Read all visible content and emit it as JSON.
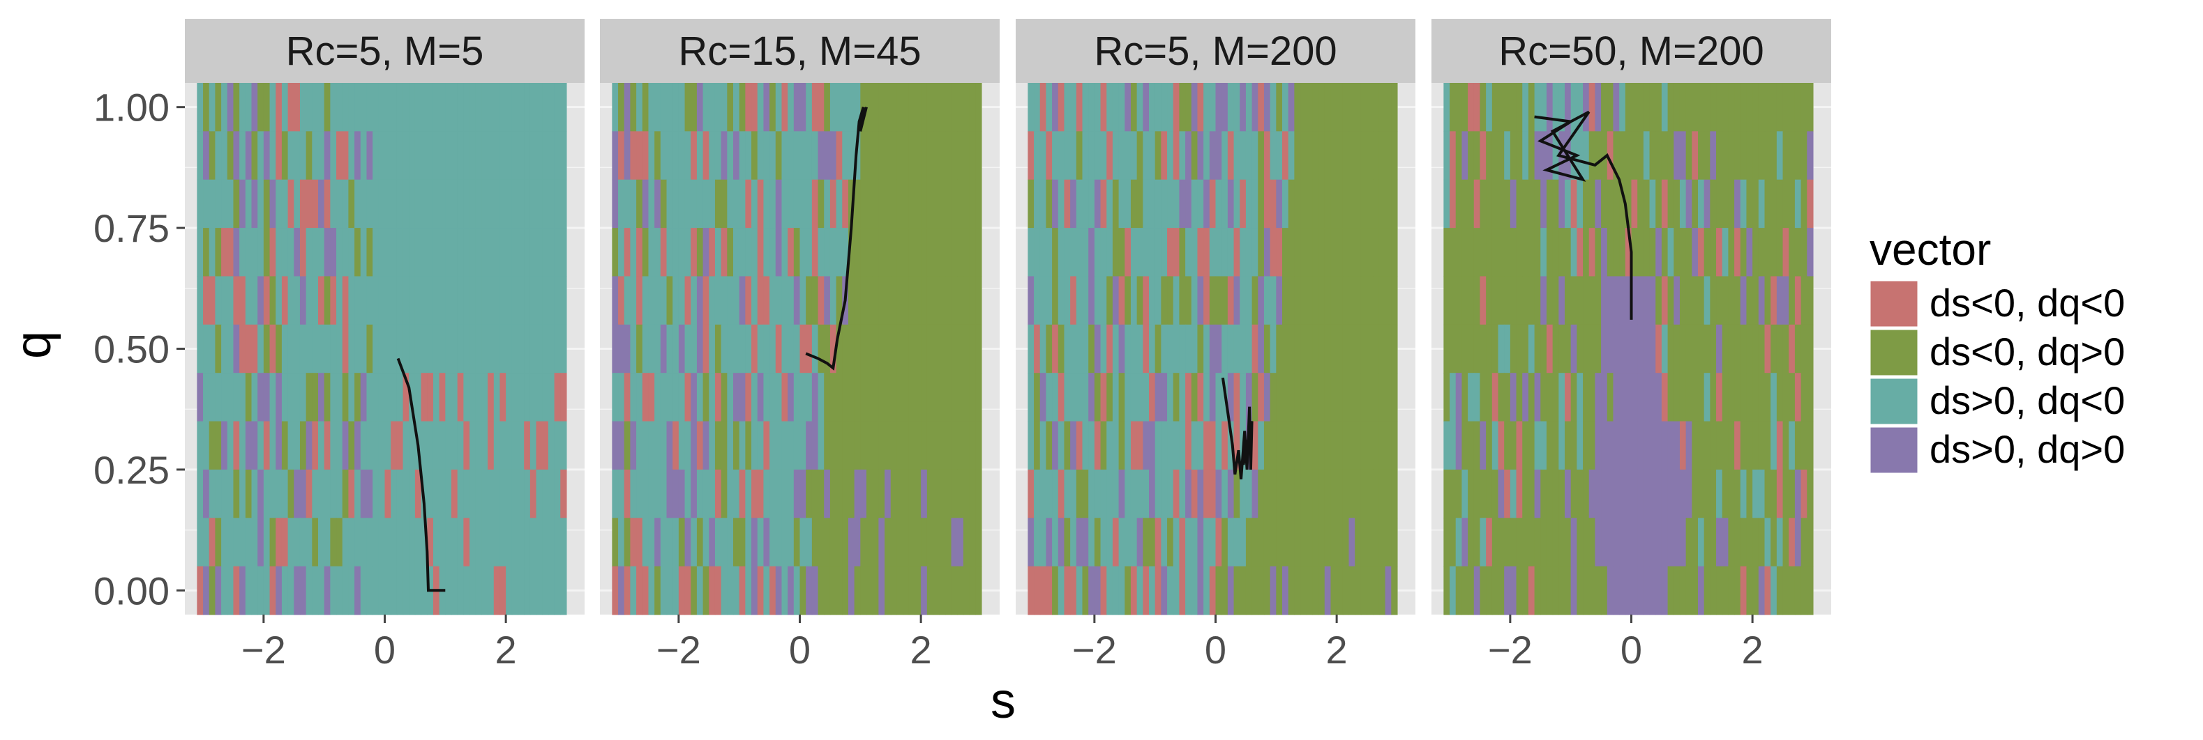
{
  "chart_data": {
    "type": "heatmap",
    "xlabel": "s",
    "ylabel": "q",
    "xlim": [
      -3.3,
      3.3
    ],
    "ylim": [
      -0.05,
      1.05
    ],
    "x_ticks": [
      -2,
      0,
      2
    ],
    "x_tick_labels": [
      "−2",
      "0",
      "2"
    ],
    "y_ticks": [
      0,
      0.25,
      0.5,
      0.75,
      1
    ],
    "y_tick_labels": [
      "0.00",
      "0.25",
      "0.50",
      "0.75",
      "1.00"
    ],
    "grid": true,
    "legend": {
      "title": "vector",
      "position": "right",
      "entries": [
        {
          "label": "ds<0, dq<0",
          "color": "#C77371"
        },
        {
          "label": "ds<0, dq>0",
          "color": "#7E9B45"
        },
        {
          "label": "ds>0, dq<0",
          "color": "#67ADA5"
        },
        {
          "label": "ds>0, dq>0",
          "color": "#8878AD"
        }
      ]
    },
    "trajectory_color": "#111111",
    "panel_background": "#E5E5E5",
    "strip_background": "#CBCBCB",
    "panels": [
      {
        "title": "Rc=5, M=5",
        "cells": {
          "x_start": -3.05,
          "x_step": 0.1,
          "n_x": 61,
          "q_rows": [
            1.0,
            0.9,
            0.8,
            0.7,
            0.6,
            0.5,
            0.4,
            0.3,
            0.2,
            0.1,
            0.0
          ],
          "base": 2,
          "boundary": -0.2,
          "right_base": 2,
          "noise_codes": [
            0,
            1,
            2,
            3
          ],
          "right_noise_codes": [
            0
          ],
          "right_noise_rows": [
            0.0,
            0.1,
            0.2,
            0.3,
            0.4
          ]
        },
        "trajectory": [
          [
            0.22,
            0.48
          ],
          [
            0.4,
            0.42
          ],
          [
            0.55,
            0.3
          ],
          [
            0.65,
            0.18
          ],
          [
            0.7,
            0.08
          ],
          [
            0.72,
            0.0
          ],
          [
            1.0,
            0.0
          ]
        ]
      },
      {
        "title": "Rc=15, M=45",
        "cells": {
          "x_start": -3.05,
          "x_step": 0.1,
          "n_x": 61,
          "q_rows": [
            1.0,
            0.9,
            0.8,
            0.7,
            0.6,
            0.5,
            0.4,
            0.3,
            0.2,
            0.1,
            0.0
          ],
          "base": 2,
          "boundary_by_row": [
            1.1,
            1.0,
            0.9,
            0.85,
            0.8,
            0.7,
            0.5,
            0.45,
            0.35,
            0.2,
            0.0
          ],
          "right_base": 1,
          "noise_codes": [
            0,
            1,
            2,
            3
          ],
          "right_noise_codes": [
            3
          ],
          "right_noise_rows": [
            0.0,
            0.1,
            0.2
          ]
        },
        "trajectory": [
          [
            0.1,
            0.49
          ],
          [
            0.3,
            0.48
          ],
          [
            0.45,
            0.47
          ],
          [
            0.55,
            0.46
          ],
          [
            0.62,
            0.52
          ],
          [
            0.75,
            0.6
          ],
          [
            0.85,
            0.75
          ],
          [
            0.93,
            0.9
          ],
          [
            0.98,
            0.97
          ],
          [
            1.05,
            1.0
          ],
          [
            1.0,
            0.95
          ],
          [
            1.1,
            1.0
          ]
        ]
      },
      {
        "title": "Rc=5, M=200",
        "cells": {
          "x_start": -3.05,
          "x_step": 0.1,
          "n_x": 61,
          "q_rows": [
            1.0,
            0.9,
            0.8,
            0.7,
            0.6,
            0.5,
            0.4,
            0.3,
            0.2,
            0.1,
            0.0
          ],
          "base": 2,
          "boundary_by_row": [
            1.3,
            1.3,
            1.2,
            1.1,
            1.1,
            1.0,
            0.9,
            0.8,
            0.7,
            0.5,
            0.1
          ],
          "right_base": 1,
          "noise_codes": [
            0,
            1,
            2,
            3
          ],
          "right_noise_codes": [
            3
          ],
          "right_noise_rows": [
            0.0,
            0.1
          ]
        },
        "trajectory": [
          [
            0.12,
            0.44
          ],
          [
            0.2,
            0.37
          ],
          [
            0.28,
            0.3
          ],
          [
            0.32,
            0.24
          ],
          [
            0.38,
            0.29
          ],
          [
            0.42,
            0.23
          ],
          [
            0.48,
            0.33
          ],
          [
            0.52,
            0.25
          ],
          [
            0.56,
            0.38
          ],
          [
            0.58,
            0.25
          ],
          [
            0.6,
            0.35
          ],
          [
            0.52,
            0.3
          ],
          [
            0.46,
            0.26
          ]
        ]
      },
      {
        "title": "Rc=50, M=200",
        "cells": {
          "x_start": -3.05,
          "x_step": 0.1,
          "n_x": 61,
          "q_rows": [
            1.0,
            0.9,
            0.8,
            0.7,
            0.6,
            0.5,
            0.4,
            0.3,
            0.2,
            0.1,
            0.0
          ],
          "base": 1,
          "noise_codes": [
            1,
            3,
            2,
            0
          ],
          "purple_core": [
            [
              -0.4,
              0.6,
              0.0
            ],
            [
              -0.6,
              0.9,
              0.1
            ],
            [
              -0.7,
              1.0,
              0.2
            ],
            [
              -0.6,
              0.8,
              0.3
            ],
            [
              -0.3,
              0.5,
              0.4
            ]
          ]
        },
        "trajectory": [
          [
            -1.6,
            0.98
          ],
          [
            -1.0,
            0.97
          ],
          [
            -1.5,
            0.93
          ],
          [
            -0.9,
            0.9
          ],
          [
            -1.4,
            0.87
          ],
          [
            -0.8,
            0.85
          ],
          [
            -1.3,
            0.95
          ],
          [
            -0.7,
            0.99
          ],
          [
            -1.2,
            0.9
          ],
          [
            -0.6,
            0.88
          ],
          [
            -0.4,
            0.9
          ],
          [
            -0.2,
            0.85
          ],
          [
            -0.1,
            0.8
          ],
          [
            0.0,
            0.7
          ],
          [
            0.0,
            0.56
          ]
        ]
      }
    ]
  }
}
